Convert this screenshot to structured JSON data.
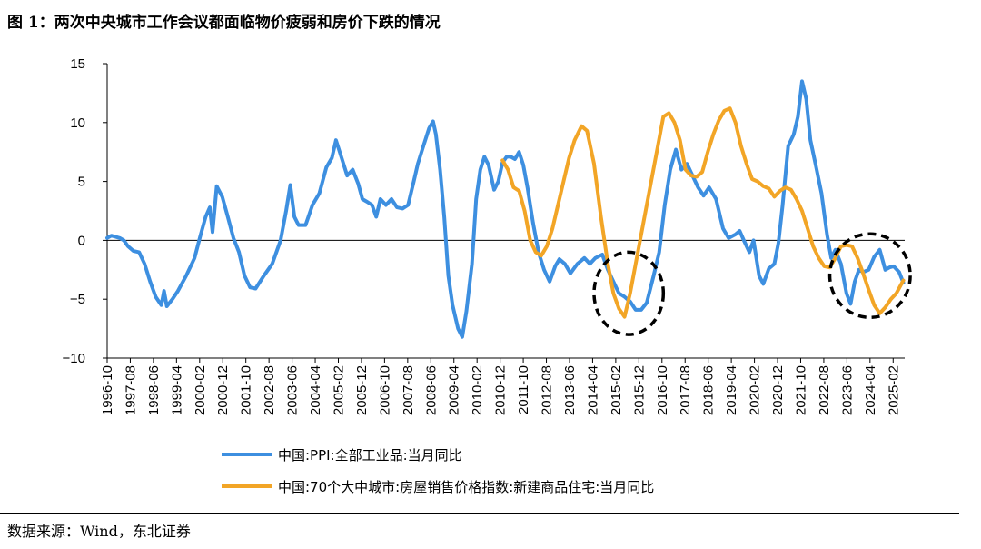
{
  "title": "图 1：两次中央城市工作会议都面临物价疲弱和房价下跌的情况",
  "source": "数据来源：Wind，东北证券",
  "chart_data": {
    "type": "line",
    "y_ticks": [
      "15",
      "10",
      "5",
      "0",
      "−5",
      "−10"
    ],
    "x_ticks": [
      "1996-10",
      "1997-08",
      "1998-06",
      "1999-04",
      "2000-02",
      "2000-12",
      "2001-10",
      "2002-08",
      "2003-06",
      "2004-04",
      "2005-02",
      "2005-12",
      "2006-10",
      "2007-08",
      "2008-06",
      "2009-04",
      "2010-02",
      "2010-12",
      "2011-10",
      "2012-08",
      "2013-06",
      "2014-04",
      "2015-02",
      "2015-12",
      "2016-10",
      "2017-08",
      "2018-06",
      "2019-04",
      "2020-02",
      "2020-12",
      "2021-10",
      "2022-08",
      "2023-06",
      "2024-04",
      "2025-02"
    ],
    "ylim": [
      -10,
      15
    ],
    "xlim": [
      1996.75,
      2025.5
    ],
    "colors": {
      "ppi": "#3d8fe0",
      "house": "#f2a526",
      "circle": "#000000"
    },
    "series": [
      {
        "name": "中国:PPI:全部工业品:当月同比",
        "key": "ppi",
        "points": [
          [
            1996.75,
            0.2
          ],
          [
            1996.9,
            0.4
          ],
          [
            1997.05,
            0.3
          ],
          [
            1997.2,
            0.2
          ],
          [
            1997.35,
            0.0
          ],
          [
            1997.5,
            -0.5
          ],
          [
            1997.7,
            -0.9
          ],
          [
            1997.9,
            -1.0
          ],
          [
            1998.1,
            -2.0
          ],
          [
            1998.3,
            -3.5
          ],
          [
            1998.5,
            -4.8
          ],
          [
            1998.7,
            -5.5
          ],
          [
            1998.8,
            -4.3
          ],
          [
            1998.9,
            -5.6
          ],
          [
            1999.1,
            -5.0
          ],
          [
            1999.3,
            -4.3
          ],
          [
            1999.6,
            -3.0
          ],
          [
            1999.9,
            -1.5
          ],
          [
            2000.1,
            0.3
          ],
          [
            2000.3,
            2.0
          ],
          [
            2000.45,
            2.8
          ],
          [
            2000.55,
            0.7
          ],
          [
            2000.7,
            4.6
          ],
          [
            2000.9,
            3.7
          ],
          [
            2001.1,
            2.0
          ],
          [
            2001.3,
            0.2
          ],
          [
            2001.5,
            -1.0
          ],
          [
            2001.7,
            -3.0
          ],
          [
            2001.9,
            -4.0
          ],
          [
            2002.1,
            -4.1
          ],
          [
            2002.4,
            -3.0
          ],
          [
            2002.7,
            -2.0
          ],
          [
            2003.0,
            0.0
          ],
          [
            2003.2,
            2.5
          ],
          [
            2003.35,
            4.7
          ],
          [
            2003.5,
            2.0
          ],
          [
            2003.65,
            1.3
          ],
          [
            2003.9,
            1.3
          ],
          [
            2004.15,
            3.0
          ],
          [
            2004.4,
            4.0
          ],
          [
            2004.65,
            6.2
          ],
          [
            2004.85,
            7.0
          ],
          [
            2005.0,
            8.5
          ],
          [
            2005.2,
            7.0
          ],
          [
            2005.4,
            5.5
          ],
          [
            2005.6,
            6.0
          ],
          [
            2005.8,
            4.8
          ],
          [
            2005.95,
            3.5
          ],
          [
            2006.1,
            3.3
          ],
          [
            2006.3,
            3.0
          ],
          [
            2006.45,
            2.0
          ],
          [
            2006.6,
            3.5
          ],
          [
            2006.8,
            3.0
          ],
          [
            2007.0,
            3.5
          ],
          [
            2007.2,
            2.8
          ],
          [
            2007.4,
            2.7
          ],
          [
            2007.6,
            3.0
          ],
          [
            2007.8,
            5.0
          ],
          [
            2007.95,
            6.5
          ],
          [
            2008.15,
            8.0
          ],
          [
            2008.35,
            9.5
          ],
          [
            2008.5,
            10.1
          ],
          [
            2008.6,
            9.0
          ],
          [
            2008.75,
            6.0
          ],
          [
            2008.9,
            2.0
          ],
          [
            2009.05,
            -3.0
          ],
          [
            2009.2,
            -5.5
          ],
          [
            2009.4,
            -7.5
          ],
          [
            2009.55,
            -8.2
          ],
          [
            2009.7,
            -6.0
          ],
          [
            2009.9,
            -2.0
          ],
          [
            2010.05,
            3.5
          ],
          [
            2010.2,
            6.0
          ],
          [
            2010.35,
            7.1
          ],
          [
            2010.5,
            6.4
          ],
          [
            2010.7,
            4.3
          ],
          [
            2010.85,
            5.0
          ],
          [
            2011.0,
            6.6
          ],
          [
            2011.15,
            7.1
          ],
          [
            2011.3,
            7.1
          ],
          [
            2011.45,
            6.9
          ],
          [
            2011.6,
            7.5
          ],
          [
            2011.75,
            6.4
          ],
          [
            2011.9,
            4.5
          ],
          [
            2012.1,
            1.5
          ],
          [
            2012.3,
            -1.0
          ],
          [
            2012.5,
            -2.5
          ],
          [
            2012.7,
            -3.5
          ],
          [
            2012.9,
            -2.2
          ],
          [
            2013.05,
            -1.6
          ],
          [
            2013.25,
            -2.0
          ],
          [
            2013.45,
            -2.8
          ],
          [
            2013.7,
            -2.0
          ],
          [
            2013.95,
            -1.5
          ],
          [
            2014.15,
            -2.0
          ],
          [
            2014.35,
            -1.5
          ],
          [
            2014.6,
            -1.2
          ],
          [
            2014.8,
            -2.5
          ],
          [
            2015.0,
            -3.5
          ],
          [
            2015.2,
            -4.5
          ],
          [
            2015.4,
            -4.8
          ],
          [
            2015.6,
            -5.2
          ],
          [
            2015.8,
            -5.9
          ],
          [
            2016.0,
            -5.9
          ],
          [
            2016.2,
            -5.3
          ],
          [
            2016.45,
            -3.0
          ],
          [
            2016.65,
            -1.0
          ],
          [
            2016.85,
            3.0
          ],
          [
            2017.05,
            6.0
          ],
          [
            2017.25,
            7.7
          ],
          [
            2017.45,
            6.0
          ],
          [
            2017.65,
            6.5
          ],
          [
            2017.85,
            5.5
          ],
          [
            2018.05,
            4.5
          ],
          [
            2018.25,
            3.8
          ],
          [
            2018.45,
            4.5
          ],
          [
            2018.7,
            3.5
          ],
          [
            2018.95,
            1.0
          ],
          [
            2019.15,
            0.2
          ],
          [
            2019.4,
            0.5
          ],
          [
            2019.55,
            0.8
          ],
          [
            2019.7,
            0.0
          ],
          [
            2019.9,
            -1.0
          ],
          [
            2020.05,
            0.0
          ],
          [
            2020.25,
            -3.0
          ],
          [
            2020.4,
            -3.7
          ],
          [
            2020.6,
            -2.4
          ],
          [
            2020.8,
            -2.0
          ],
          [
            2020.95,
            -0.2
          ],
          [
            2021.1,
            3.0
          ],
          [
            2021.3,
            8.0
          ],
          [
            2021.5,
            9.0
          ],
          [
            2021.65,
            10.5
          ],
          [
            2021.8,
            13.5
          ],
          [
            2021.95,
            12.0
          ],
          [
            2022.1,
            8.5
          ],
          [
            2022.3,
            6.3
          ],
          [
            2022.5,
            4.0
          ],
          [
            2022.7,
            0.5
          ],
          [
            2022.85,
            -1.5
          ],
          [
            2023.0,
            -0.8
          ],
          [
            2023.2,
            -2.0
          ],
          [
            2023.4,
            -4.5
          ],
          [
            2023.55,
            -5.4
          ],
          [
            2023.7,
            -3.5
          ],
          [
            2023.85,
            -2.5
          ],
          [
            2024.0,
            -2.7
          ],
          [
            2024.2,
            -2.5
          ],
          [
            2024.4,
            -1.4
          ],
          [
            2024.6,
            -0.8
          ],
          [
            2024.8,
            -2.5
          ],
          [
            2024.95,
            -2.3
          ],
          [
            2025.1,
            -2.2
          ],
          [
            2025.3,
            -2.7
          ],
          [
            2025.45,
            -3.6
          ]
        ]
      },
      {
        "name": "中国:70个大中城市:房屋销售价格指数:新建商品住宅:当月同比",
        "key": "house",
        "points": [
          [
            2011.0,
            6.8
          ],
          [
            2011.2,
            6.0
          ],
          [
            2011.4,
            4.5
          ],
          [
            2011.6,
            4.2
          ],
          [
            2011.8,
            2.5
          ],
          [
            2012.0,
            0.0
          ],
          [
            2012.2,
            -1.0
          ],
          [
            2012.4,
            -1.3
          ],
          [
            2012.6,
            -0.5
          ],
          [
            2012.8,
            1.0
          ],
          [
            2013.0,
            3.0
          ],
          [
            2013.2,
            5.0
          ],
          [
            2013.4,
            7.0
          ],
          [
            2013.6,
            8.5
          ],
          [
            2013.85,
            9.7
          ],
          [
            2014.05,
            9.3
          ],
          [
            2014.3,
            6.5
          ],
          [
            2014.55,
            2.0
          ],
          [
            2014.8,
            -2.0
          ],
          [
            2015.0,
            -4.5
          ],
          [
            2015.2,
            -5.8
          ],
          [
            2015.4,
            -6.5
          ],
          [
            2015.6,
            -4.5
          ],
          [
            2015.8,
            -2.0
          ],
          [
            2016.0,
            0.5
          ],
          [
            2016.2,
            3.0
          ],
          [
            2016.4,
            5.5
          ],
          [
            2016.6,
            8.0
          ],
          [
            2016.8,
            10.5
          ],
          [
            2017.0,
            10.8
          ],
          [
            2017.2,
            10.0
          ],
          [
            2017.4,
            8.5
          ],
          [
            2017.6,
            6.0
          ],
          [
            2017.8,
            5.5
          ],
          [
            2018.0,
            5.4
          ],
          [
            2018.2,
            5.8
          ],
          [
            2018.4,
            7.5
          ],
          [
            2018.6,
            9.0
          ],
          [
            2018.8,
            10.2
          ],
          [
            2019.0,
            11.0
          ],
          [
            2019.2,
            11.2
          ],
          [
            2019.4,
            10.0
          ],
          [
            2019.6,
            8.0
          ],
          [
            2019.8,
            6.5
          ],
          [
            2020.0,
            5.2
          ],
          [
            2020.2,
            5.0
          ],
          [
            2020.4,
            4.6
          ],
          [
            2020.6,
            4.4
          ],
          [
            2020.8,
            3.7
          ],
          [
            2021.0,
            4.2
          ],
          [
            2021.2,
            4.5
          ],
          [
            2021.4,
            4.3
          ],
          [
            2021.6,
            3.5
          ],
          [
            2021.8,
            2.5
          ],
          [
            2022.0,
            1.0
          ],
          [
            2022.2,
            -0.5
          ],
          [
            2022.4,
            -1.5
          ],
          [
            2022.6,
            -2.2
          ],
          [
            2022.8,
            -2.3
          ],
          [
            2023.0,
            -1.5
          ],
          [
            2023.2,
            -0.5
          ],
          [
            2023.4,
            -0.4
          ],
          [
            2023.6,
            -0.5
          ],
          [
            2023.8,
            -1.5
          ],
          [
            2024.0,
            -2.8
          ],
          [
            2024.2,
            -4.2
          ],
          [
            2024.4,
            -5.5
          ],
          [
            2024.6,
            -6.2
          ],
          [
            2024.8,
            -5.7
          ],
          [
            2025.0,
            -5.0
          ],
          [
            2025.2,
            -4.5
          ],
          [
            2025.45,
            -3.4
          ]
        ]
      }
    ],
    "annotations": [
      {
        "type": "dashed-circle",
        "center": [
          2015.55,
          -4.5
        ],
        "radius_x_years": 1.25,
        "radius_y_units": 3.5
      },
      {
        "type": "dashed-circle",
        "center": [
          2024.25,
          -3.0
        ],
        "radius_x_years": 1.45,
        "radius_y_units": 3.55
      }
    ],
    "grid": false,
    "legend_position": "bottom"
  }
}
